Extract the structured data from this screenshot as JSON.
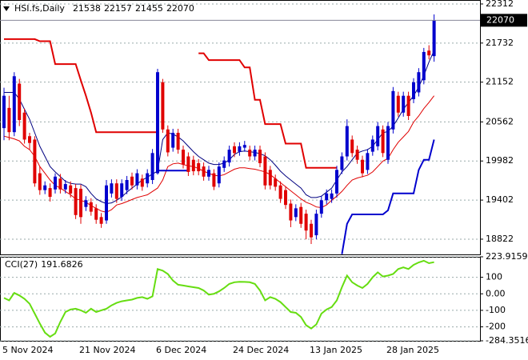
{
  "chart_data": [
    {
      "type": "candlestick",
      "title": "HSI.fs,Daily",
      "categories": [
        "5 Nov 2024",
        null,
        null,
        null,
        null,
        null,
        null,
        null,
        null,
        null,
        null,
        null,
        null,
        null,
        null,
        "21 Nov 2024",
        null,
        null,
        null,
        null,
        null,
        null,
        null,
        null,
        null,
        null,
        null,
        null,
        null,
        null,
        "6 Dec 2024",
        null,
        null,
        null,
        null,
        null,
        null,
        null,
        null,
        null,
        null,
        null,
        null,
        null,
        null,
        "24 Dec 2024",
        null,
        null,
        null,
        null,
        null,
        null,
        null,
        null,
        null,
        null,
        null,
        null,
        null,
        null,
        "13 Jan 2025",
        null,
        null,
        null,
        null,
        null,
        null,
        null,
        null,
        null,
        null,
        null,
        null,
        null,
        null,
        "28 Jan 2025",
        null,
        null,
        null,
        null,
        null,
        null,
        null,
        null,
        null
      ],
      "ohlc": [
        [
          20470,
          21070,
          20290,
          20950
        ],
        [
          20770,
          20950,
          20290,
          20410
        ],
        [
          20410,
          21300,
          20350,
          21240
        ],
        [
          21130,
          21200,
          20500,
          20590
        ],
        [
          20700,
          20760,
          20240,
          20300
        ],
        [
          20350,
          20400,
          20150,
          20250
        ],
        [
          20300,
          20350,
          19600,
          19650
        ],
        [
          19800,
          19900,
          19480,
          19550
        ],
        [
          19550,
          19680,
          19490,
          19620
        ],
        [
          19580,
          19650,
          19380,
          19450
        ],
        [
          19560,
          19800,
          19500,
          19750
        ],
        [
          19720,
          19790,
          19500,
          19560
        ],
        [
          19560,
          19700,
          19500,
          19640
        ],
        [
          19620,
          19680,
          19440,
          19500
        ],
        [
          19580,
          19640,
          19120,
          19180
        ],
        [
          19570,
          19630,
          19050,
          19150
        ],
        [
          19300,
          19460,
          19240,
          19400
        ],
        [
          19370,
          19430,
          19170,
          19230
        ],
        [
          19280,
          19340,
          19050,
          19110
        ],
        [
          19150,
          19210,
          18990,
          19050
        ],
        [
          19100,
          19700,
          19050,
          19620
        ],
        [
          19500,
          19710,
          19440,
          19650
        ],
        [
          19650,
          19710,
          19360,
          19420
        ],
        [
          19450,
          19710,
          19390,
          19650
        ],
        [
          19550,
          19760,
          19490,
          19700
        ],
        [
          19750,
          19810,
          19560,
          19620
        ],
        [
          19620,
          19860,
          19560,
          19800
        ],
        [
          19720,
          19780,
          19540,
          19600
        ],
        [
          19650,
          19860,
          19590,
          19800
        ],
        [
          19700,
          20160,
          19640,
          20100
        ],
        [
          19800,
          21350,
          19780,
          21300
        ],
        [
          21150,
          21200,
          20400,
          20450
        ],
        [
          20450,
          20510,
          20050,
          20110
        ],
        [
          20180,
          20460,
          20120,
          20400
        ],
        [
          20400,
          20460,
          20090,
          20150
        ],
        [
          20150,
          20210,
          19870,
          19930
        ],
        [
          20050,
          20110,
          19760,
          19820
        ],
        [
          20000,
          20060,
          19770,
          19830
        ],
        [
          19950,
          20010,
          19770,
          19830
        ],
        [
          19900,
          19960,
          19690,
          19750
        ],
        [
          19750,
          19910,
          19690,
          19850
        ],
        [
          19800,
          19860,
          19550,
          19600
        ],
        [
          19650,
          19960,
          19590,
          19900
        ],
        [
          19880,
          20050,
          19820,
          19990
        ],
        [
          19960,
          20210,
          19900,
          20150
        ],
        [
          20200,
          20260,
          20040,
          20100
        ],
        [
          20120,
          20260,
          20060,
          20200
        ],
        [
          20180,
          20280,
          20120,
          20220
        ],
        [
          20150,
          20210,
          19990,
          20050
        ],
        [
          20050,
          20210,
          19990,
          20150
        ],
        [
          20150,
          20210,
          19890,
          19950
        ],
        [
          20050,
          20110,
          19560,
          19620
        ],
        [
          19850,
          19910,
          19560,
          19620
        ],
        [
          19720,
          19780,
          19540,
          19600
        ],
        [
          19620,
          19680,
          19360,
          19420
        ],
        [
          19550,
          19610,
          19270,
          19330
        ],
        [
          19350,
          19410,
          19000,
          19100
        ],
        [
          19150,
          19340,
          19090,
          19280
        ],
        [
          19300,
          19360,
          18990,
          19050
        ],
        [
          19200,
          19260,
          18820,
          18950
        ],
        [
          19050,
          19110,
          18750,
          18850
        ],
        [
          18880,
          19260,
          18820,
          19200
        ],
        [
          19200,
          19460,
          19140,
          19400
        ],
        [
          19400,
          19560,
          19340,
          19500
        ],
        [
          19420,
          19560,
          19360,
          19500
        ],
        [
          19500,
          19910,
          19440,
          19850
        ],
        [
          19850,
          20110,
          19790,
          20050
        ],
        [
          20050,
          20600,
          19990,
          20500
        ],
        [
          20300,
          20360,
          20040,
          20100
        ],
        [
          20150,
          20210,
          19940,
          20000
        ],
        [
          20000,
          20060,
          19740,
          19800
        ],
        [
          19850,
          20160,
          19790,
          20100
        ],
        [
          20120,
          20360,
          20060,
          20300
        ],
        [
          20200,
          20560,
          20140,
          20500
        ],
        [
          20450,
          20510,
          20040,
          20100
        ],
        [
          20000,
          20560,
          19940,
          20500
        ],
        [
          20450,
          21080,
          20390,
          21020
        ],
        [
          20950,
          21010,
          20640,
          20700
        ],
        [
          20700,
          21010,
          20640,
          20950
        ],
        [
          20950,
          21010,
          20590,
          20650
        ],
        [
          20900,
          21210,
          20840,
          21150
        ],
        [
          21000,
          21360,
          20940,
          21300
        ],
        [
          21180,
          21660,
          21120,
          21600
        ],
        [
          21620,
          21700,
          21490,
          21550
        ],
        [
          21538,
          22157,
          21455,
          22070
        ]
      ],
      "up_color": "#0000cd",
      "down_color": "#e00000",
      "lines": [
        {
          "color": "#000080",
          "width": 1,
          "values": [
            21000,
            21000,
            21000,
            20900,
            20750,
            20600,
            20400,
            20200,
            20050,
            19900,
            19820,
            19750,
            19680,
            19650,
            19640,
            19640,
            19600,
            19500,
            19420,
            19380,
            19350,
            19360,
            19400,
            19450,
            19520,
            19580,
            19640,
            19700,
            19740,
            19790,
            19830,
            20300,
            20400,
            20380,
            20340,
            20280,
            20200,
            20120,
            20050,
            20000,
            19950,
            19930,
            19930,
            19950,
            20000,
            20080,
            20120,
            20130,
            20120,
            20110,
            20090,
            20060,
            20000,
            19920,
            19830,
            19760,
            19700,
            19640,
            19580,
            19480,
            19440,
            19440,
            19460,
            19520,
            19580,
            19700,
            19820,
            19900,
            20000,
            20100,
            20130,
            20150,
            20200,
            20300,
            20400,
            20420,
            20500,
            20620,
            20750,
            20850,
            20950,
            21080,
            21250,
            21450,
            21620
          ]
        },
        {
          "color": "#e00000",
          "width": 1,
          "values": [
            20350,
            20330,
            20310,
            20280,
            20200,
            20150,
            20050,
            19900,
            19800,
            19700,
            19620,
            19580,
            19530,
            19480,
            19420,
            19400,
            19370,
            19320,
            19280,
            19240,
            19220,
            19260,
            19330,
            19350,
            19380,
            19410,
            19440,
            19460,
            19480,
            19530,
            19580,
            19700,
            19900,
            19940,
            19950,
            19930,
            19910,
            19900,
            19870,
            19830,
            19800,
            19770,
            19760,
            19780,
            19820,
            19860,
            19880,
            19880,
            19870,
            19860,
            19840,
            19820,
            19780,
            19720,
            19660,
            19600,
            19540,
            19480,
            19420,
            19370,
            19340,
            19300,
            19290,
            19330,
            19400,
            19460,
            19530,
            19620,
            19700,
            19730,
            19750,
            19770,
            19820,
            19900,
            19980,
            20020,
            20150,
            20260,
            20340,
            20420,
            20560,
            20650,
            20760,
            20850,
            20950
          ]
        },
        {
          "color": "#e00000",
          "width": 2,
          "values": [
            21790,
            21790,
            21790,
            21790,
            21790,
            21790,
            21790,
            21760,
            21760,
            21760,
            21420,
            21420,
            21420,
            21420,
            21420,
            21180,
            20950,
            20700,
            20410,
            20410,
            20410,
            20410,
            20410,
            20410,
            20410,
            20410,
            20410,
            20410,
            20410,
            20410,
            20410,
            null,
            null,
            null,
            null,
            null,
            null,
            null,
            21580,
            21580,
            21480,
            21480,
            21480,
            21480,
            21480,
            21480,
            21480,
            21370,
            21370,
            20890,
            20890,
            20530,
            20530,
            20530,
            20530,
            20240,
            20240,
            20240,
            20240,
            19880,
            19880,
            19880,
            19880,
            19880,
            19880,
            19880,
            null,
            null,
            null,
            null,
            null,
            null,
            null,
            null,
            null,
            null,
            null,
            null,
            null,
            null,
            null,
            null,
            null,
            null,
            null
          ]
        },
        {
          "color": "#0000cd",
          "width": 2,
          "values": [
            null,
            null,
            null,
            null,
            null,
            null,
            null,
            null,
            null,
            null,
            null,
            null,
            null,
            null,
            null,
            null,
            null,
            null,
            null,
            null,
            null,
            null,
            null,
            null,
            null,
            null,
            null,
            null,
            null,
            null,
            19840,
            19840,
            19840,
            19840,
            19840,
            19840,
            19840,
            null,
            null,
            null,
            null,
            null,
            null,
            null,
            null,
            null,
            null,
            null,
            null,
            null,
            null,
            null,
            null,
            null,
            null,
            null,
            null,
            null,
            null,
            null,
            null,
            null,
            null,
            null,
            null,
            null,
            18600,
            19050,
            19190,
            19190,
            19190,
            19190,
            19190,
            19190,
            19190,
            19250,
            19500,
            19500,
            19500,
            19500,
            19500,
            19850,
            20000,
            20000,
            20300
          ]
        }
      ],
      "ylim": [
        18596,
        22371
      ],
      "yticks": [
        18822,
        19402,
        19982,
        20562,
        21152,
        21732,
        22312
      ],
      "grid": true
    },
    {
      "type": "line",
      "title": "CCI(27)",
      "color": "#66dd11",
      "values": [
        -25,
        -40,
        5,
        -10,
        -30,
        -60,
        -120,
        -180,
        -235,
        -260,
        -240,
        -170,
        -110,
        -95,
        -90,
        -100,
        -115,
        -90,
        -110,
        -100,
        -90,
        -70,
        -55,
        -45,
        -40,
        -35,
        -25,
        -20,
        -30,
        -15,
        150,
        140,
        120,
        80,
        55,
        50,
        45,
        40,
        35,
        20,
        -5,
        0,
        15,
        35,
        60,
        70,
        73,
        72,
        70,
        60,
        20,
        -40,
        -20,
        -30,
        -50,
        -80,
        -110,
        -115,
        -140,
        -190,
        -210,
        -185,
        -120,
        -95,
        -80,
        -40,
        40,
        110,
        70,
        50,
        35,
        60,
        100,
        130,
        105,
        110,
        120,
        150,
        160,
        150,
        175,
        190,
        200,
        185,
        191.6826
      ],
      "ylim": [
        -284.3516,
        223.9159
      ],
      "yticks": [
        -284.3516,
        -200,
        -100,
        {
          "value": 0,
          "label": "0.00"
        },
        100,
        223.9159
      ],
      "grid": true
    }
  ]
}
